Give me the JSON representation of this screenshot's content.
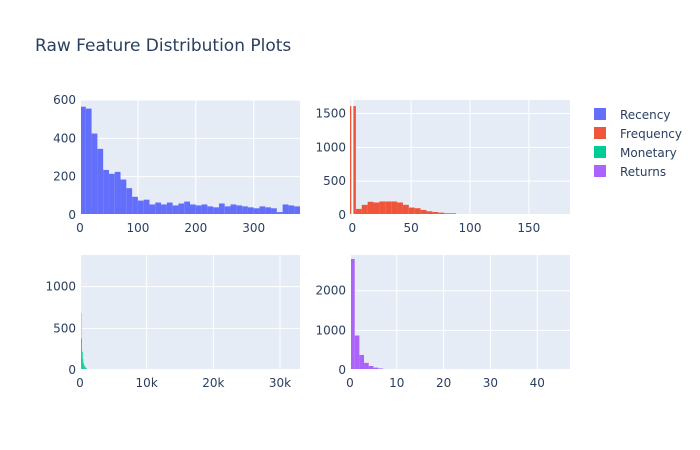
{
  "title": "Raw Feature Distribution Plots",
  "colors": {
    "plot_bg": "#e5ecf6",
    "grid": "#ffffff",
    "text": "#2a3f5f"
  },
  "legend": [
    {
      "name": "Recency",
      "color": "#636efa"
    },
    {
      "name": "Frequency",
      "color": "#ef553b"
    },
    {
      "name": "Monetary",
      "color": "#00cc96"
    },
    {
      "name": "Returns",
      "color": "#ab63fa"
    }
  ],
  "chart_data": [
    {
      "type": "bar",
      "name": "Recency",
      "color": "#636efa",
      "xlim": [
        0,
        380
      ],
      "ylim": [
        0,
        600
      ],
      "xticks": [
        0,
        100,
        200,
        300
      ],
      "xtick_labels": [
        "0",
        "100",
        "200",
        "300"
      ],
      "yticks": [
        0,
        200,
        400,
        600
      ],
      "ytick_labels": [
        "0",
        "200",
        "400",
        "600"
      ],
      "bin_start": 0,
      "bin_width": 10,
      "values": [
        565,
        555,
        425,
        345,
        235,
        215,
        225,
        185,
        140,
        95,
        75,
        80,
        55,
        65,
        55,
        65,
        50,
        60,
        70,
        55,
        50,
        55,
        45,
        40,
        60,
        45,
        55,
        50,
        45,
        40,
        35,
        45,
        40,
        35,
        15,
        55,
        50,
        45
      ]
    },
    {
      "type": "bar",
      "name": "Frequency",
      "color": "#ef553b",
      "xlim": [
        -2,
        185
      ],
      "ylim": [
        0,
        1700
      ],
      "xticks": [
        0,
        50,
        100,
        150
      ],
      "xtick_labels": [
        "0",
        "50",
        "100",
        "150"
      ],
      "yticks": [
        0,
        500,
        1000,
        1500
      ],
      "ytick_labels": [
        "0",
        "500",
        "1000",
        "1500"
      ],
      "bin_start": -2,
      "bin_width": 5,
      "values": [
        1610,
        90,
        150,
        195,
        185,
        200,
        200,
        200,
        185,
        150,
        110,
        100,
        75,
        55,
        45,
        35,
        25,
        25,
        10,
        10,
        10,
        10,
        10,
        5,
        5,
        5,
        5,
        5,
        5,
        5,
        5,
        5,
        5,
        5,
        5,
        5,
        5
      ]
    },
    {
      "type": "bar",
      "name": "Monetary",
      "color": "#00cc96",
      "xlim": [
        0,
        33000
      ],
      "ylim": [
        0,
        1380
      ],
      "xticks": [
        0,
        10000,
        20000,
        30000
      ],
      "xtick_labels": [
        "0",
        "10k",
        "20k",
        "30k"
      ],
      "yticks": [
        0,
        500,
        1000
      ],
      "ytick_labels": [
        "0",
        "500",
        "1000"
      ],
      "bin_start": 0,
      "bin_width": 100,
      "values": [
        1100,
        680,
        380,
        220,
        130,
        80,
        55,
        40,
        30,
        20,
        15,
        12,
        10,
        8,
        6,
        5,
        4,
        3,
        3,
        2,
        2,
        2,
        1,
        1,
        1,
        1,
        1,
        1,
        1,
        1
      ]
    },
    {
      "type": "bar",
      "name": "Returns",
      "color": "#ab63fa",
      "xlim": [
        0,
        47
      ],
      "ylim": [
        0,
        2900
      ],
      "xticks": [
        0,
        10,
        20,
        30,
        40
      ],
      "xtick_labels": [
        "0",
        "10",
        "20",
        "30",
        "40"
      ],
      "yticks": [
        0,
        1000,
        2000
      ],
      "ytick_labels": [
        "0",
        "1000",
        "2000"
      ],
      "bin_start": 0,
      "bin_width": 1,
      "values": [
        2800,
        870,
        380,
        180,
        100,
        60,
        40,
        20,
        15,
        10,
        5,
        3,
        2,
        2,
        1,
        1
      ]
    }
  ]
}
